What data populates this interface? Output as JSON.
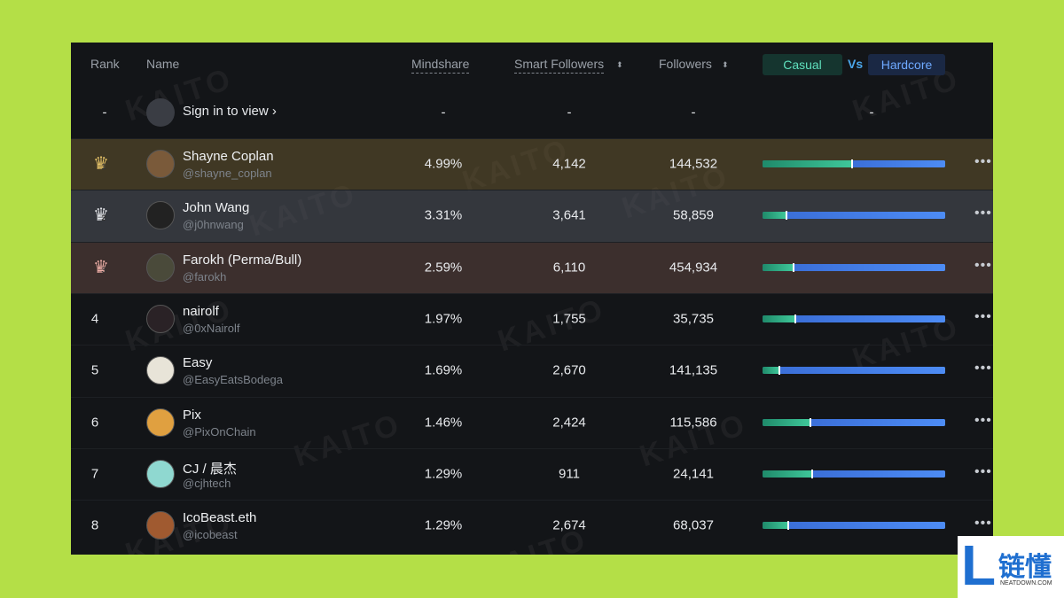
{
  "header": {
    "rank": "Rank",
    "name": "Name",
    "mindshare": "Mindshare",
    "smart_followers": "Smart Followers",
    "followers": "Followers",
    "casual": "Casual",
    "vs": "Vs",
    "hardcore": "Hardcore"
  },
  "sign_in_row": {
    "rank": "-",
    "label": "Sign in to view ›",
    "mindshare": "-",
    "smart_followers": "-",
    "followers": "-",
    "casual_hardcore": "-"
  },
  "rows": [
    {
      "rank": "1",
      "name": "Shayne Coplan",
      "handle": "@shayne_coplan",
      "mindshare": "4.99%",
      "smart_followers": "4,142",
      "followers": "144,532",
      "casual_share": 49
    },
    {
      "rank": "2",
      "name": "John Wang",
      "handle": "@j0hnwang",
      "mindshare": "3.31%",
      "smart_followers": "3,641",
      "followers": "58,859",
      "casual_share": 13
    },
    {
      "rank": "3",
      "name": "Farokh (Perma/Bull)",
      "handle": "@farokh",
      "mindshare": "2.59%",
      "smart_followers": "6,110",
      "followers": "454,934",
      "casual_share": 17
    },
    {
      "rank": "4",
      "name": "nairolf",
      "handle": "@0xNairolf",
      "mindshare": "1.97%",
      "smart_followers": "1,755",
      "followers": "35,735",
      "casual_share": 18
    },
    {
      "rank": "5",
      "name": "Easy",
      "handle": "@EasyEatsBodega",
      "mindshare": "1.69%",
      "smart_followers": "2,670",
      "followers": "141,135",
      "casual_share": 9
    },
    {
      "rank": "6",
      "name": "Pix",
      "handle": "@PixOnChain",
      "mindshare": "1.46%",
      "smart_followers": "2,424",
      "followers": "115,586",
      "casual_share": 26
    },
    {
      "rank": "7",
      "name": "CJ / 晨杰",
      "handle": "@cjhtech",
      "mindshare": "1.29%",
      "smart_followers": "911",
      "followers": "24,141",
      "casual_share": 27
    },
    {
      "rank": "8",
      "name": "IcoBeast.eth",
      "handle": "@icobeast",
      "mindshare": "1.29%",
      "smart_followers": "2,674",
      "followers": "68,037",
      "casual_share": 14
    }
  ],
  "watermark": "KAITO",
  "logo": {
    "mark": "L",
    "name": "链懂",
    "site": "NEATDOWN.COM"
  }
}
